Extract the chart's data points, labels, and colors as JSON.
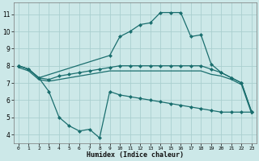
{
  "title": "",
  "xlabel": "Humidex (Indice chaleur)",
  "ylabel": "",
  "background_color": "#cce8e8",
  "grid_color": "#aacfcf",
  "line_color": "#1a6e6e",
  "xlim": [
    -0.5,
    23.5
  ],
  "ylim": [
    3.5,
    11.7
  ],
  "xticks": [
    0,
    1,
    2,
    3,
    4,
    5,
    6,
    7,
    8,
    9,
    10,
    11,
    12,
    13,
    14,
    15,
    16,
    17,
    18,
    19,
    20,
    21,
    22,
    23
  ],
  "yticks": [
    4,
    5,
    6,
    7,
    8,
    9,
    10,
    11
  ],
  "series": [
    {
      "x": [
        0,
        1,
        2,
        9,
        10,
        11,
        12,
        13,
        14,
        15,
        16,
        17,
        18,
        19,
        20,
        21,
        22,
        23
      ],
      "y": [
        8.0,
        7.8,
        7.3,
        8.6,
        9.7,
        10.0,
        10.4,
        10.5,
        11.1,
        11.1,
        11.1,
        9.7,
        9.8,
        8.1,
        7.6,
        7.3,
        7.0,
        5.3
      ],
      "marker": "D",
      "markersize": 2.0,
      "linewidth": 0.9,
      "linestyle": "-"
    },
    {
      "x": [
        0,
        1,
        2,
        3,
        4,
        5,
        6,
        7,
        8,
        9,
        10,
        11,
        12,
        13,
        14,
        15,
        16,
        17,
        18,
        19,
        20,
        21,
        22,
        23
      ],
      "y": [
        8.0,
        7.8,
        7.3,
        7.2,
        7.4,
        7.5,
        7.6,
        7.7,
        7.8,
        7.9,
        8.0,
        8.0,
        8.0,
        8.0,
        8.0,
        8.0,
        8.0,
        8.0,
        8.0,
        7.8,
        7.6,
        7.3,
        7.0,
        5.3
      ],
      "marker": "D",
      "markersize": 2.0,
      "linewidth": 0.9,
      "linestyle": "-"
    },
    {
      "x": [
        0,
        1,
        2,
        3,
        4,
        5,
        6,
        7,
        8,
        9,
        10,
        11,
        12,
        13,
        14,
        15,
        16,
        17,
        18,
        19,
        20,
        21,
        22,
        23
      ],
      "y": [
        7.9,
        7.7,
        7.2,
        7.1,
        7.2,
        7.3,
        7.4,
        7.5,
        7.6,
        7.7,
        7.7,
        7.7,
        7.7,
        7.7,
        7.7,
        7.7,
        7.7,
        7.7,
        7.7,
        7.5,
        7.4,
        7.2,
        6.9,
        5.2
      ],
      "marker": null,
      "markersize": 0,
      "linewidth": 0.9,
      "linestyle": "-"
    },
    {
      "x": [
        0,
        1,
        2,
        3,
        4,
        5,
        6,
        7,
        8,
        9,
        10,
        11,
        12,
        13,
        14,
        15,
        16,
        17,
        18,
        19,
        20,
        21,
        22,
        23
      ],
      "y": [
        8.0,
        7.8,
        7.3,
        6.5,
        5.0,
        4.5,
        4.2,
        4.3,
        3.8,
        6.5,
        6.3,
        6.2,
        6.1,
        6.0,
        5.9,
        5.8,
        5.7,
        5.6,
        5.5,
        5.4,
        5.3,
        5.3,
        5.3,
        5.3
      ],
      "marker": "D",
      "markersize": 2.0,
      "linewidth": 0.9,
      "linestyle": "-"
    }
  ]
}
